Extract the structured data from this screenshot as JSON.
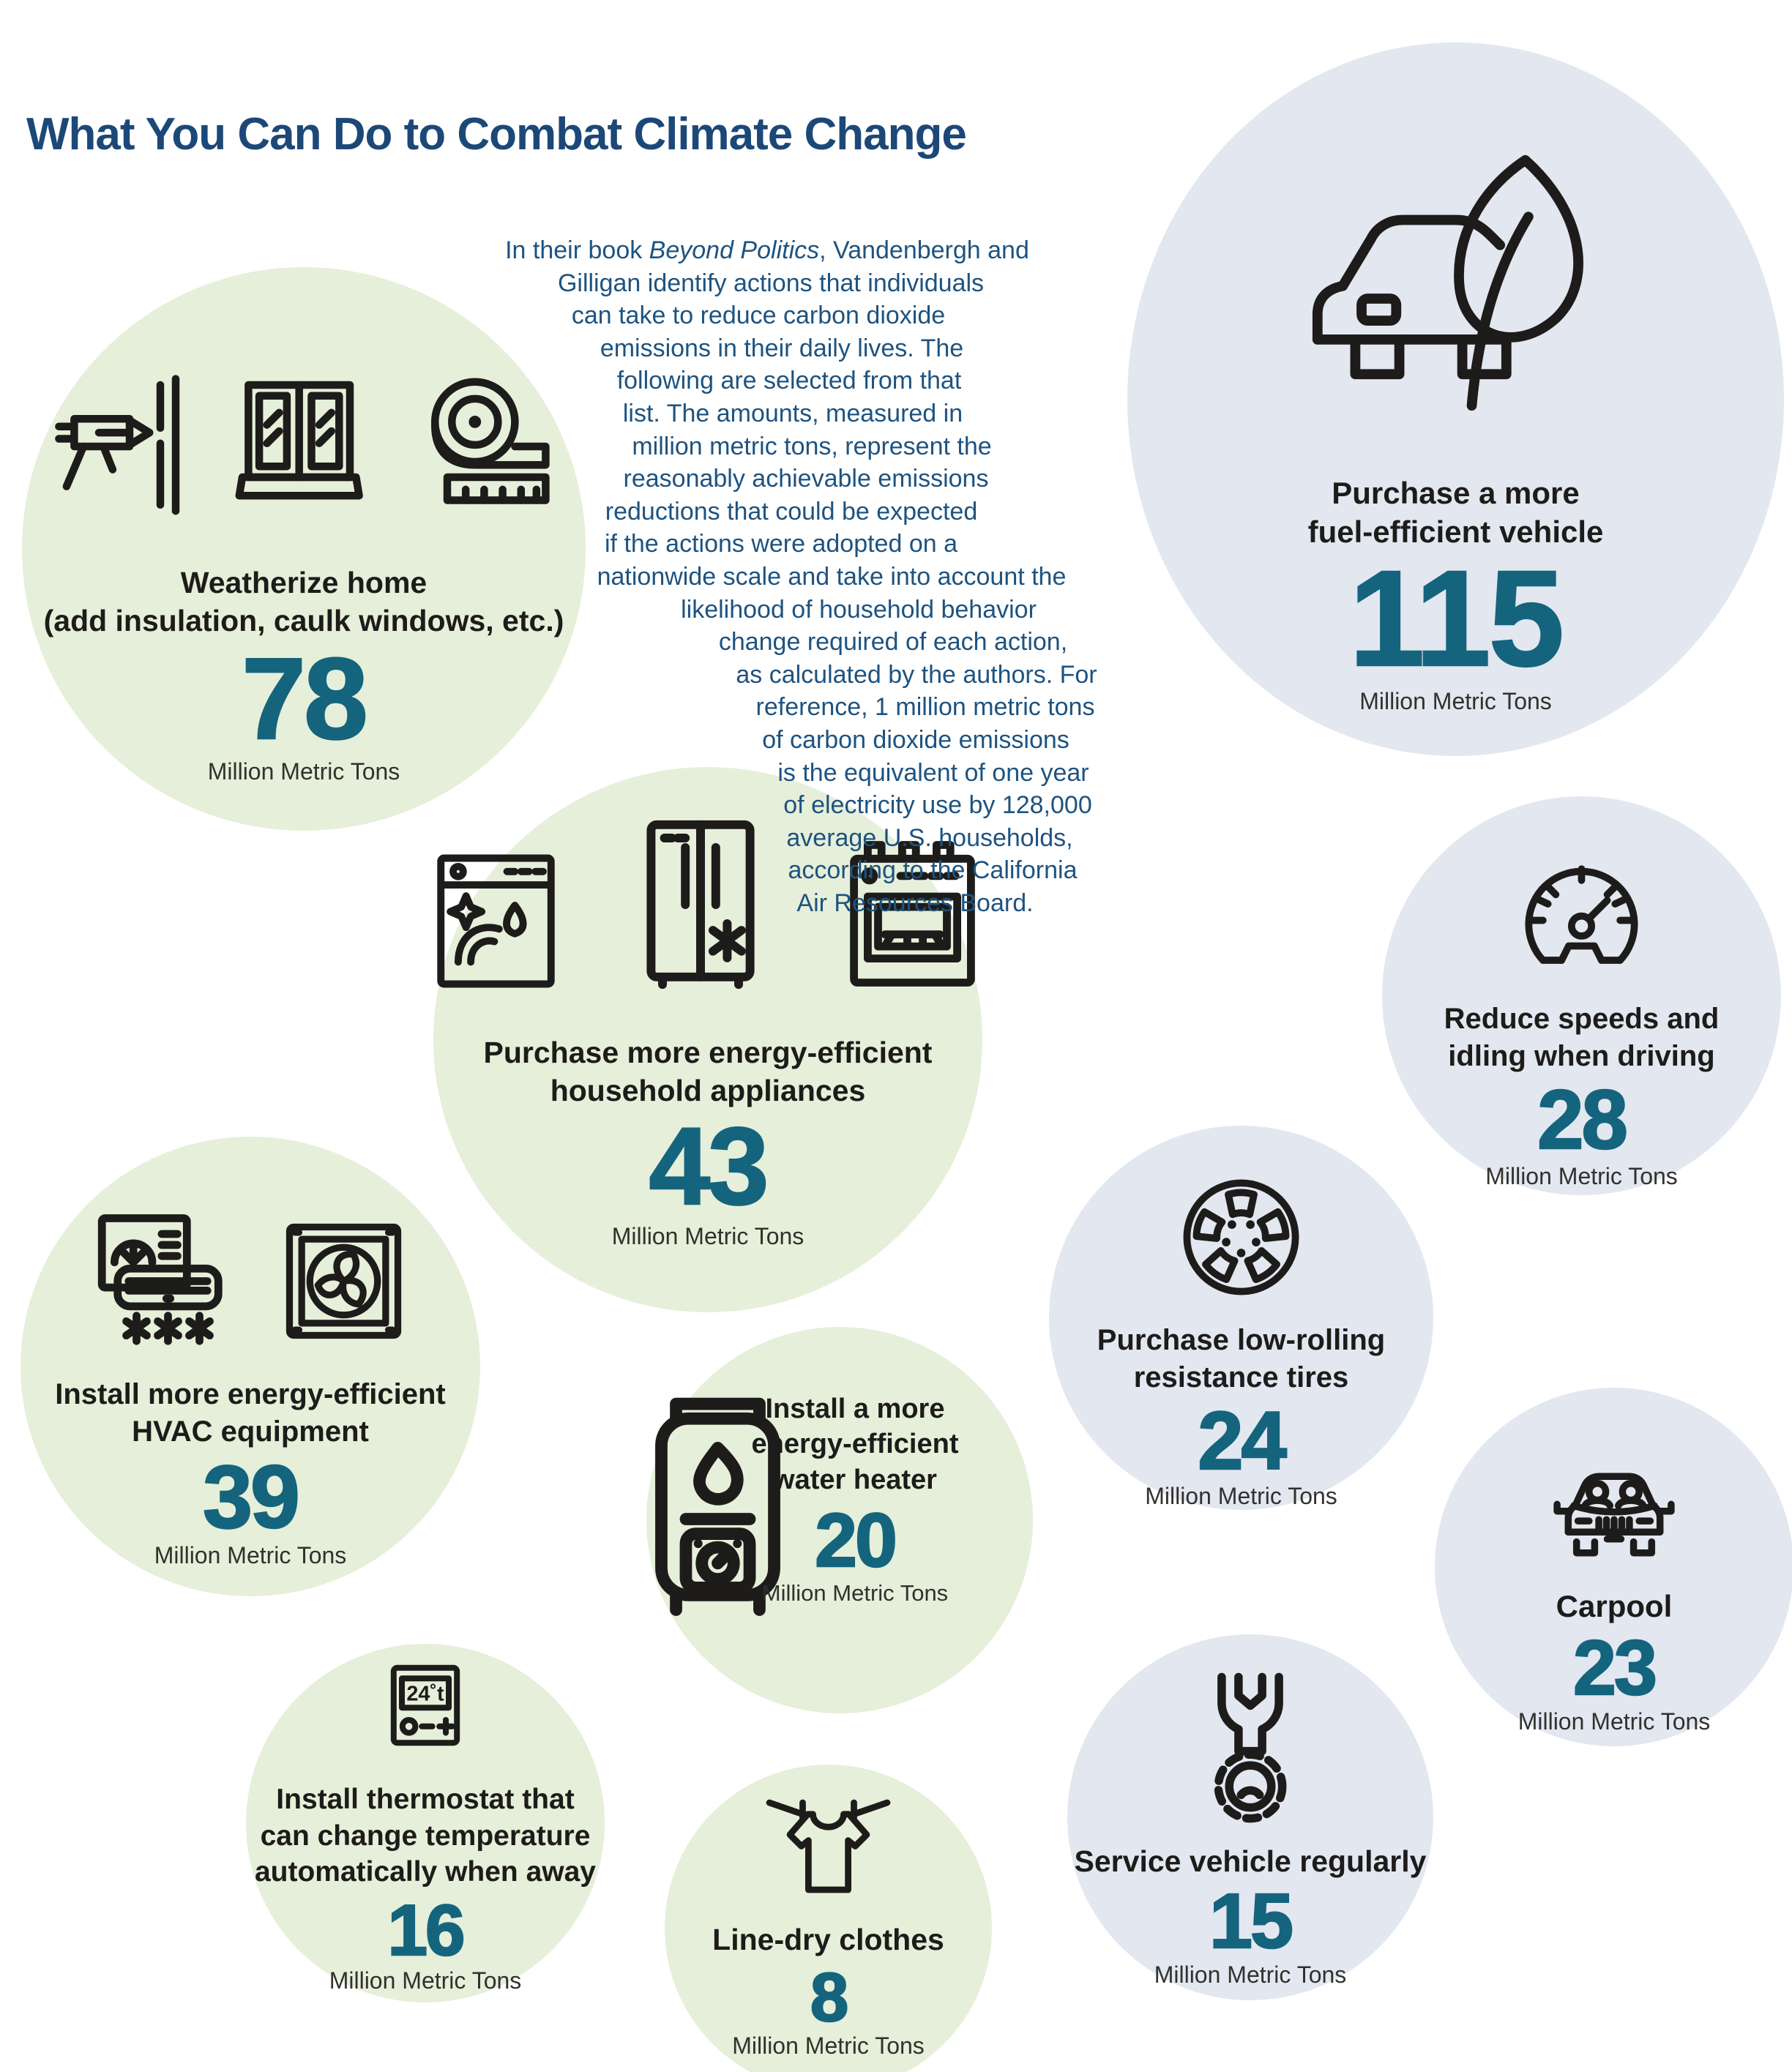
{
  "title": "What You Can Do to Combat Climate Change",
  "intro_lines": [
    "In their book Beyond Politics, Vandenbergh and",
    "Gilligan identify actions that individuals",
    "can take to reduce carbon dioxide",
    "emissions in their daily lives. The",
    "following are selected from that",
    "list. The amounts, measured in",
    "million metric tons, represent the",
    "reasonably achievable emissions",
    "reductions that could be expected",
    "if the actions were adopted on a",
    "nationwide scale and take into account the",
    "likelihood of household behavior",
    "change required of each action,",
    "as calculated by the authors. For",
    "reference, 1 million metric tons",
    "of carbon dioxide emissions",
    "is the equivalent of one year",
    "of electricity use by 128,000",
    "average U.S. households,",
    "according to the California",
    "Air Resources Board."
  ],
  "italic_phrase": "Beyond Politics",
  "unit_label": "Million Metric Tons",
  "colors": {
    "heading_blue": "#1c4878",
    "intro_blue": "#1d5380",
    "value_teal": "#15647e",
    "green_bubble": "#e6efd9",
    "blue_bubble": "#e2e7f0",
    "icon_stroke": "#1d1c1a"
  },
  "bubbles": [
    {
      "id": "weatherize-home",
      "color": "green",
      "label_lines": [
        "Weatherize home",
        "(add insulation, caulk windows, etc.)"
      ],
      "value": "78",
      "icons": [
        "caulk-gun-icon",
        "window-icon",
        "insulation-roll-icon"
      ]
    },
    {
      "id": "fuel-efficient-vehicle",
      "color": "blue",
      "label_lines": [
        "Purchase a more",
        "fuel-efficient vehicle"
      ],
      "value": "115",
      "icons": [
        "car-leaf-icon"
      ]
    },
    {
      "id": "household-appliances",
      "color": "green",
      "label_lines": [
        "Purchase more energy-efficient",
        "household appliances"
      ],
      "value": "43",
      "icons": [
        "dishwasher-icon",
        "refrigerator-icon",
        "stove-icon"
      ]
    },
    {
      "id": "reduce-speeds-idling",
      "color": "blue",
      "label_lines": [
        "Reduce speeds and",
        "idling when driving"
      ],
      "value": "28",
      "icons": [
        "speedometer-icon"
      ]
    },
    {
      "id": "hvac-equipment",
      "color": "green",
      "label_lines": [
        "Install more energy-efficient",
        "HVAC equipment"
      ],
      "value": "39",
      "icons": [
        "ac-unit-icon",
        "vent-fan-icon"
      ]
    },
    {
      "id": "low-rolling-tires",
      "color": "blue",
      "label_lines": [
        "Purchase low-rolling",
        "resistance tires"
      ],
      "value": "24",
      "icons": [
        "tire-icon"
      ]
    },
    {
      "id": "water-heater",
      "color": "green",
      "layout": "row",
      "label_lines": [
        "Install a more",
        "energy-efficient",
        "water heater"
      ],
      "value": "20",
      "icons": [
        "water-heater-icon"
      ]
    },
    {
      "id": "carpool",
      "color": "blue",
      "label_lines": [
        "Carpool"
      ],
      "value": "23",
      "icons": [
        "carpool-car-icon"
      ]
    },
    {
      "id": "smart-thermostat",
      "color": "green",
      "label_lines": [
        "Install thermostat that",
        "can change temperature",
        "automatically when away"
      ],
      "value": "16",
      "icons": [
        "thermostat-icon"
      ],
      "thermostat_display": "24˚t"
    },
    {
      "id": "service-vehicle",
      "color": "blue",
      "label_lines": [
        "Service vehicle regularly"
      ],
      "value": "15",
      "icons": [
        "wrench-gear-icon"
      ]
    },
    {
      "id": "line-dry-clothes",
      "color": "green",
      "label_lines": [
        "Line-dry clothes"
      ],
      "value": "8",
      "icons": [
        "tshirt-line-icon"
      ]
    }
  ],
  "chart_data": {
    "type": "table",
    "title": "What You Can Do to Combat Climate Change",
    "ylabel": "Million Metric Tons",
    "source_note": "Actions from Beyond Politics by Vandenbergh and Gilligan; 1 million metric tons of CO2 equals one year of electricity use by 128,000 average U.S. households, per the California Air Resources Board",
    "categories": [
      "Purchase a more fuel-efficient vehicle",
      "Weatherize home (add insulation, caulk windows, etc.)",
      "Purchase more energy-efficient household appliances",
      "Install more energy-efficient HVAC equipment",
      "Reduce speeds and idling when driving",
      "Purchase low-rolling resistance tires",
      "Carpool",
      "Install a more energy-efficient water heater",
      "Install thermostat that can change temperature automatically when away",
      "Service vehicle regularly",
      "Line-dry clothes"
    ],
    "values": [
      115,
      78,
      43,
      39,
      28,
      24,
      23,
      20,
      16,
      15,
      8
    ]
  }
}
